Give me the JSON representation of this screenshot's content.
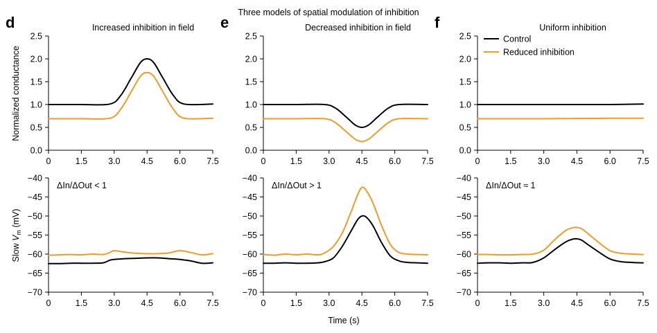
{
  "figure_title": "Three models of spatial modulation of inhibition",
  "xlabel": "Time (s)",
  "ylabel_top": "Normalized conductance",
  "ylabel_bottom_prefix": "Slow ",
  "ylabel_bottom_symbol": "V",
  "ylabel_bottom_subscript": "m",
  "ylabel_bottom_suffix": " (mV)",
  "colors": {
    "control": "#000000",
    "reduced": "#F29A26"
  },
  "legend": [
    {
      "label": "Control",
      "color": "#000000"
    },
    {
      "label": "Reduced inhibition",
      "color": "#F29A26"
    }
  ],
  "legend_position": "top-left of panel f",
  "chart_data": [
    {
      "type": "line",
      "panel_letter": "d",
      "title": "Increased inhibition in field",
      "xlim": [
        0,
        7.5
      ],
      "ylim": [
        0,
        2.5
      ],
      "xticks": [
        "0",
        "1.5",
        "3.0",
        "4.5",
        "6.0",
        "7.5"
      ],
      "yticks": [
        "0.0",
        "0.5",
        "1.0",
        "1.5",
        "2.0",
        "2.5"
      ],
      "x": [
        0,
        1.5,
        2.8,
        3.3,
        3.8,
        4.2,
        4.5,
        4.8,
        5.2,
        5.7,
        6.2,
        7.5
      ],
      "series": [
        {
          "name": "Control",
          "values": [
            1.0,
            1.0,
            1.01,
            1.2,
            1.6,
            1.92,
            2.0,
            1.92,
            1.6,
            1.2,
            1.01,
            1.01
          ]
        },
        {
          "name": "Reduced inhibition",
          "values": [
            0.69,
            0.69,
            0.7,
            0.9,
            1.3,
            1.62,
            1.7,
            1.62,
            1.3,
            0.9,
            0.7,
            0.7
          ]
        }
      ]
    },
    {
      "type": "line",
      "panel_letter": "e",
      "title": "Decreased inhibition in field",
      "xlim": [
        0,
        7.5
      ],
      "ylim": [
        0,
        2.5
      ],
      "xticks": [
        "0",
        "1.5",
        "3.0",
        "4.5",
        "6.0",
        "7.5"
      ],
      "yticks": [
        "0.0",
        "0.5",
        "1.0",
        "1.5",
        "2.0",
        "2.5"
      ],
      "x": [
        0,
        1.5,
        2.8,
        3.3,
        3.8,
        4.2,
        4.5,
        4.8,
        5.2,
        5.7,
        6.2,
        7.5
      ],
      "series": [
        {
          "name": "Control",
          "values": [
            1.0,
            1.0,
            1.0,
            0.92,
            0.72,
            0.55,
            0.5,
            0.55,
            0.72,
            0.92,
            1.0,
            1.0
          ]
        },
        {
          "name": "Reduced inhibition",
          "values": [
            0.69,
            0.69,
            0.69,
            0.6,
            0.4,
            0.24,
            0.19,
            0.24,
            0.4,
            0.6,
            0.69,
            0.69
          ]
        }
      ]
    },
    {
      "type": "line",
      "panel_letter": "f",
      "title": "Uniform inhibition",
      "xlim": [
        0,
        7.5
      ],
      "ylim": [
        0,
        2.5
      ],
      "xticks": [
        "0",
        "1.5",
        "3.0",
        "4.5",
        "6.0",
        "7.5"
      ],
      "yticks": [
        "0.0",
        "0.5",
        "1.0",
        "1.5",
        "2.0",
        "2.5"
      ],
      "x": [
        0,
        3.0,
        4.5,
        6.0,
        7.5
      ],
      "series": [
        {
          "name": "Control",
          "values": [
            1.0,
            1.0,
            1.0,
            1.0,
            1.01
          ]
        },
        {
          "name": "Reduced inhibition",
          "values": [
            0.69,
            0.69,
            0.695,
            0.7,
            0.7
          ]
        }
      ]
    },
    {
      "type": "line",
      "panel_letter": "",
      "title": "",
      "annotation": "ΔIn/ΔOut < 1",
      "xlim": [
        0,
        7.5
      ],
      "ylim": [
        -70,
        -40
      ],
      "xticks": [
        "0",
        "1.5",
        "3.0",
        "4.5",
        "6.0",
        "7.5"
      ],
      "yticks": [
        "−70",
        "−65",
        "−60",
        "−55",
        "−50",
        "−45",
        "−40"
      ],
      "x": [
        0,
        0.5,
        1.0,
        1.5,
        2.0,
        2.5,
        2.8,
        3.0,
        3.5,
        4.0,
        4.5,
        5.0,
        5.5,
        6.0,
        6.5,
        7.0,
        7.5
      ],
      "series": [
        {
          "name": "Control",
          "values": [
            -62.5,
            -62.5,
            -62.4,
            -62.4,
            -62.4,
            -62.3,
            -61.6,
            -61.4,
            -61.2,
            -61.1,
            -61.0,
            -61.0,
            -61.2,
            -61.4,
            -61.8,
            -62.4,
            -62.3
          ]
        },
        {
          "name": "Reduced inhibition",
          "values": [
            -60.3,
            -60.2,
            -60.1,
            -60.2,
            -60.0,
            -60.1,
            -59.6,
            -59.1,
            -59.5,
            -59.8,
            -59.9,
            -59.9,
            -59.7,
            -59.1,
            -59.6,
            -60.2,
            -59.9
          ]
        }
      ]
    },
    {
      "type": "line",
      "panel_letter": "",
      "title": "",
      "annotation": "ΔIn/ΔOut > 1",
      "xlim": [
        0,
        7.5
      ],
      "ylim": [
        -70,
        -40
      ],
      "xticks": [
        "0",
        "1.5",
        "3.0",
        "4.5",
        "6.0",
        "7.5"
      ],
      "yticks": [
        "−70",
        "−65",
        "−60",
        "−55",
        "−50",
        "−45",
        "−40"
      ],
      "x": [
        0,
        0.5,
        1.0,
        1.5,
        2.0,
        2.5,
        2.8,
        3.2,
        3.6,
        4.0,
        4.3,
        4.5,
        4.7,
        5.0,
        5.4,
        5.8,
        6.2,
        6.6,
        7.0,
        7.5
      ],
      "series": [
        {
          "name": "Control",
          "values": [
            -62.4,
            -62.4,
            -62.3,
            -62.4,
            -62.4,
            -62.3,
            -62.0,
            -61.0,
            -58.0,
            -54.0,
            -51.0,
            -50.0,
            -50.3,
            -52.5,
            -57.0,
            -60.5,
            -61.8,
            -62.2,
            -62.3,
            -62.4
          ]
        },
        {
          "name": "Reduced inhibition",
          "values": [
            -60.1,
            -60.3,
            -60.0,
            -60.2,
            -60.0,
            -60.2,
            -59.7,
            -58.0,
            -54.5,
            -49.0,
            -44.5,
            -42.5,
            -43.3,
            -46.5,
            -52.5,
            -57.5,
            -59.6,
            -60.0,
            -60.1,
            -60.2
          ]
        }
      ]
    },
    {
      "type": "line",
      "panel_letter": "",
      "title": "",
      "annotation": "ΔIn/ΔOut ≈ 1",
      "xlim": [
        0,
        7.5
      ],
      "ylim": [
        -70,
        -40
      ],
      "xticks": [
        "0",
        "1.5",
        "3.0",
        "4.5",
        "6.0",
        "7.5"
      ],
      "yticks": [
        "−70",
        "−65",
        "−60",
        "−55",
        "−50",
        "−45",
        "−40"
      ],
      "x": [
        0,
        0.5,
        1.0,
        1.5,
        2.0,
        2.5,
        3.0,
        3.5,
        4.0,
        4.3,
        4.5,
        4.7,
        5.0,
        5.5,
        6.0,
        6.5,
        7.0,
        7.5
      ],
      "series": [
        {
          "name": "Control",
          "values": [
            -62.4,
            -62.3,
            -62.3,
            -62.4,
            -62.3,
            -62.2,
            -61.0,
            -58.8,
            -56.8,
            -56.1,
            -56.0,
            -56.3,
            -57.5,
            -59.5,
            -61.3,
            -62.0,
            -62.2,
            -62.3
          ]
        },
        {
          "name": "Reduced inhibition",
          "values": [
            -60.1,
            -60.1,
            -60.2,
            -60.2,
            -60.1,
            -60.0,
            -59.0,
            -56.2,
            -53.8,
            -53.1,
            -53.0,
            -53.3,
            -54.6,
            -57.0,
            -59.1,
            -59.8,
            -60.0,
            -60.1
          ]
        }
      ]
    }
  ]
}
